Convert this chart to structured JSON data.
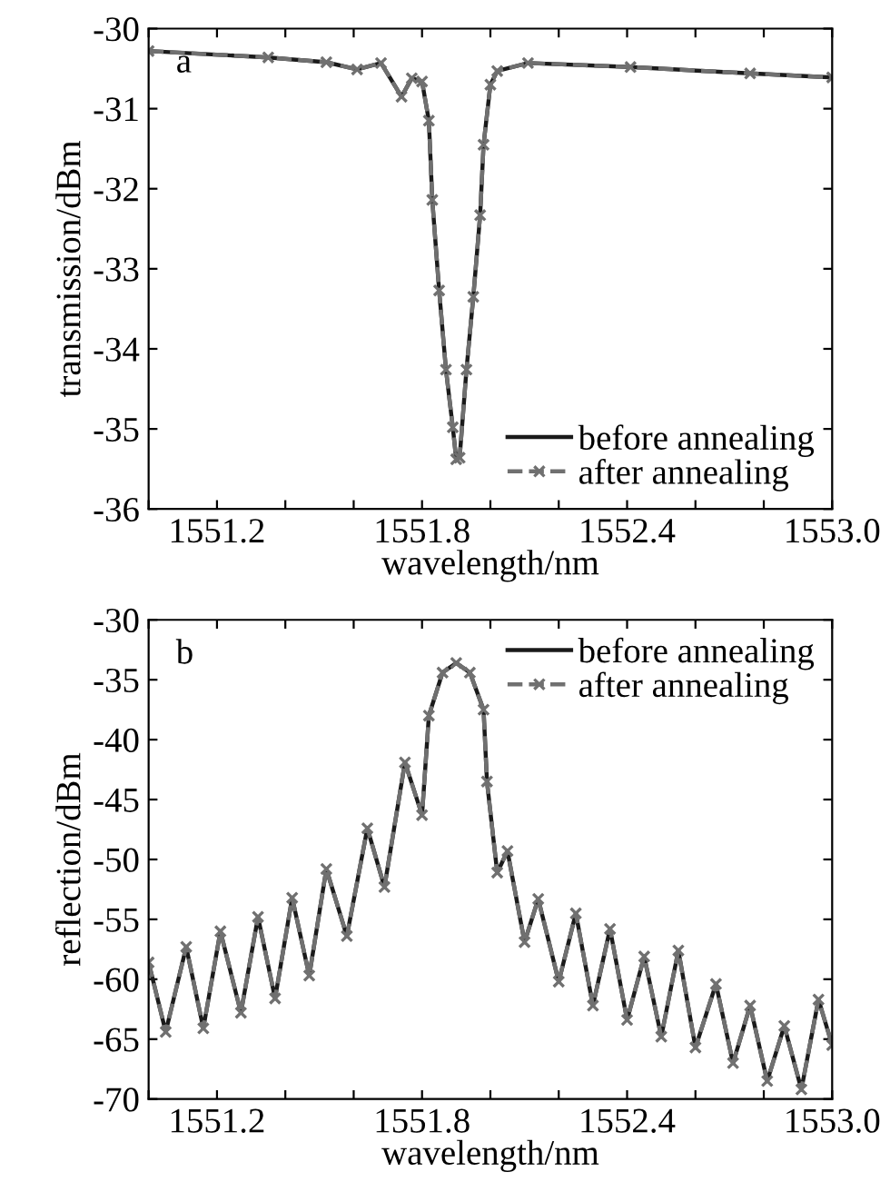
{
  "chart_data": [
    {
      "type": "line",
      "xlabel": "wavelength/nm",
      "ylabel": "transmission/dBm",
      "annotations": [
        "a"
      ],
      "legend": "bottom right",
      "grid": false,
      "x": [
        1551.0,
        1551.35,
        1551.52,
        1551.61,
        1551.68,
        1551.74,
        1551.77,
        1551.8,
        1551.82,
        1551.83,
        1551.85,
        1551.87,
        1551.89,
        1551.9,
        1551.91,
        1551.93,
        1551.95,
        1551.97,
        1551.98,
        1552.0,
        1552.02,
        1552.11,
        1552.41,
        1552.76,
        1553.0
      ],
      "series": [
        {
          "name": "before annealing",
          "color": "#1a1a1a",
          "line_style": "solid",
          "marker": "none",
          "values": [
            -30.28,
            -30.36,
            -30.42,
            -30.51,
            -30.43,
            -30.85,
            -30.62,
            -30.66,
            -31.15,
            -32.14,
            -33.27,
            -34.26,
            -34.98,
            -35.38,
            -35.36,
            -34.26,
            -33.35,
            -32.33,
            -31.45,
            -30.7,
            -30.53,
            -30.43,
            -30.48,
            -30.56,
            -30.61
          ]
        },
        {
          "name": "after annealing",
          "color": "#707070",
          "line_style": "dashed",
          "marker": "cross",
          "values": [
            -30.28,
            -30.36,
            -30.42,
            -30.51,
            -30.43,
            -30.85,
            -30.62,
            -30.66,
            -31.15,
            -32.14,
            -33.27,
            -34.26,
            -34.98,
            -35.38,
            -35.36,
            -34.26,
            -33.35,
            -32.33,
            -31.45,
            -30.7,
            -30.53,
            -30.43,
            -30.48,
            -30.56,
            -30.61
          ]
        }
      ],
      "xlim": [
        1551.0,
        1553.0
      ],
      "xticks": [
        {
          "value": 1551.0,
          "label": null
        },
        1551.2,
        {
          "value": 1551.4,
          "label": null
        },
        {
          "value": 1551.6,
          "label": null
        },
        1551.8,
        {
          "value": 1552.0,
          "label": null
        },
        {
          "value": 1552.2,
          "label": null
        },
        1552.4,
        {
          "value": 1552.6,
          "label": null
        },
        {
          "value": 1552.8,
          "label": null
        },
        {
          "value": 1553.0,
          "label": "1553.0"
        }
      ],
      "ylim": [
        -36,
        -30
      ],
      "yticks": [
        -36,
        -35,
        -34,
        -33,
        -32,
        -31,
        -30
      ]
    },
    {
      "type": "line",
      "xlabel": "wavelength/nm",
      "ylabel": "reflection/dBm",
      "annotations": [
        "b"
      ],
      "legend": "top right",
      "grid": false,
      "x": [
        1551.0,
        1551.05,
        1551.11,
        1551.16,
        1551.21,
        1551.27,
        1551.32,
        1551.37,
        1551.42,
        1551.47,
        1551.52,
        1551.58,
        1551.64,
        1551.69,
        1551.75,
        1551.8,
        1551.82,
        1551.86,
        1551.9,
        1551.94,
        1551.98,
        1551.99,
        1552.02,
        1552.05,
        1552.1,
        1552.14,
        1552.2,
        1552.25,
        1552.3,
        1552.35,
        1552.4,
        1552.45,
        1552.5,
        1552.55,
        1552.6,
        1552.66,
        1552.71,
        1552.76,
        1552.81,
        1552.86,
        1552.91,
        1552.96,
        1553.0
      ],
      "series": [
        {
          "name": "before annealing",
          "color": "#1a1a1a",
          "line_style": "solid",
          "marker": "none",
          "values": [
            -58.6,
            -64.4,
            -57.3,
            -64.1,
            -56.0,
            -62.8,
            -54.8,
            -61.6,
            -53.2,
            -59.7,
            -50.8,
            -56.4,
            -47.4,
            -52.3,
            -41.9,
            -46.3,
            -38.0,
            -34.4,
            -33.6,
            -34.4,
            -37.5,
            -43.5,
            -51.1,
            -49.3,
            -56.9,
            -53.3,
            -60.2,
            -54.5,
            -62.2,
            -55.8,
            -63.4,
            -58.1,
            -64.8,
            -57.6,
            -65.7,
            -60.4,
            -67.0,
            -62.2,
            -68.5,
            -63.9,
            -69.2,
            -61.7,
            -65.5
          ]
        },
        {
          "name": "after annealing",
          "color": "#707070",
          "line_style": "dashed",
          "marker": "cross",
          "values": [
            -58.6,
            -64.4,
            -57.3,
            -64.1,
            -56.0,
            -62.8,
            -54.8,
            -61.6,
            -53.2,
            -59.7,
            -50.8,
            -56.4,
            -47.4,
            -52.3,
            -41.9,
            -46.3,
            -38.0,
            -34.4,
            -33.6,
            -34.4,
            -37.5,
            -43.5,
            -51.1,
            -49.3,
            -56.9,
            -53.3,
            -60.2,
            -54.5,
            -62.2,
            -55.8,
            -63.4,
            -58.1,
            -64.8,
            -57.6,
            -65.7,
            -60.4,
            -67.0,
            -62.2,
            -68.5,
            -63.9,
            -69.2,
            -61.7,
            -65.5
          ]
        }
      ],
      "xlim": [
        1551.0,
        1553.0
      ],
      "xticks": [
        {
          "value": 1551.0,
          "label": null
        },
        1551.2,
        {
          "value": 1551.4,
          "label": null
        },
        {
          "value": 1551.6,
          "label": null
        },
        1551.8,
        {
          "value": 1552.0,
          "label": null
        },
        {
          "value": 1552.2,
          "label": null
        },
        1552.4,
        {
          "value": 1552.6,
          "label": null
        },
        {
          "value": 1552.8,
          "label": null
        },
        {
          "value": 1553.0,
          "label": "1553.0"
        }
      ],
      "ylim": [
        -70,
        -30
      ],
      "yticks": [
        -70,
        -65,
        -60,
        -55,
        -50,
        -45,
        -40,
        -35,
        -30
      ]
    }
  ]
}
